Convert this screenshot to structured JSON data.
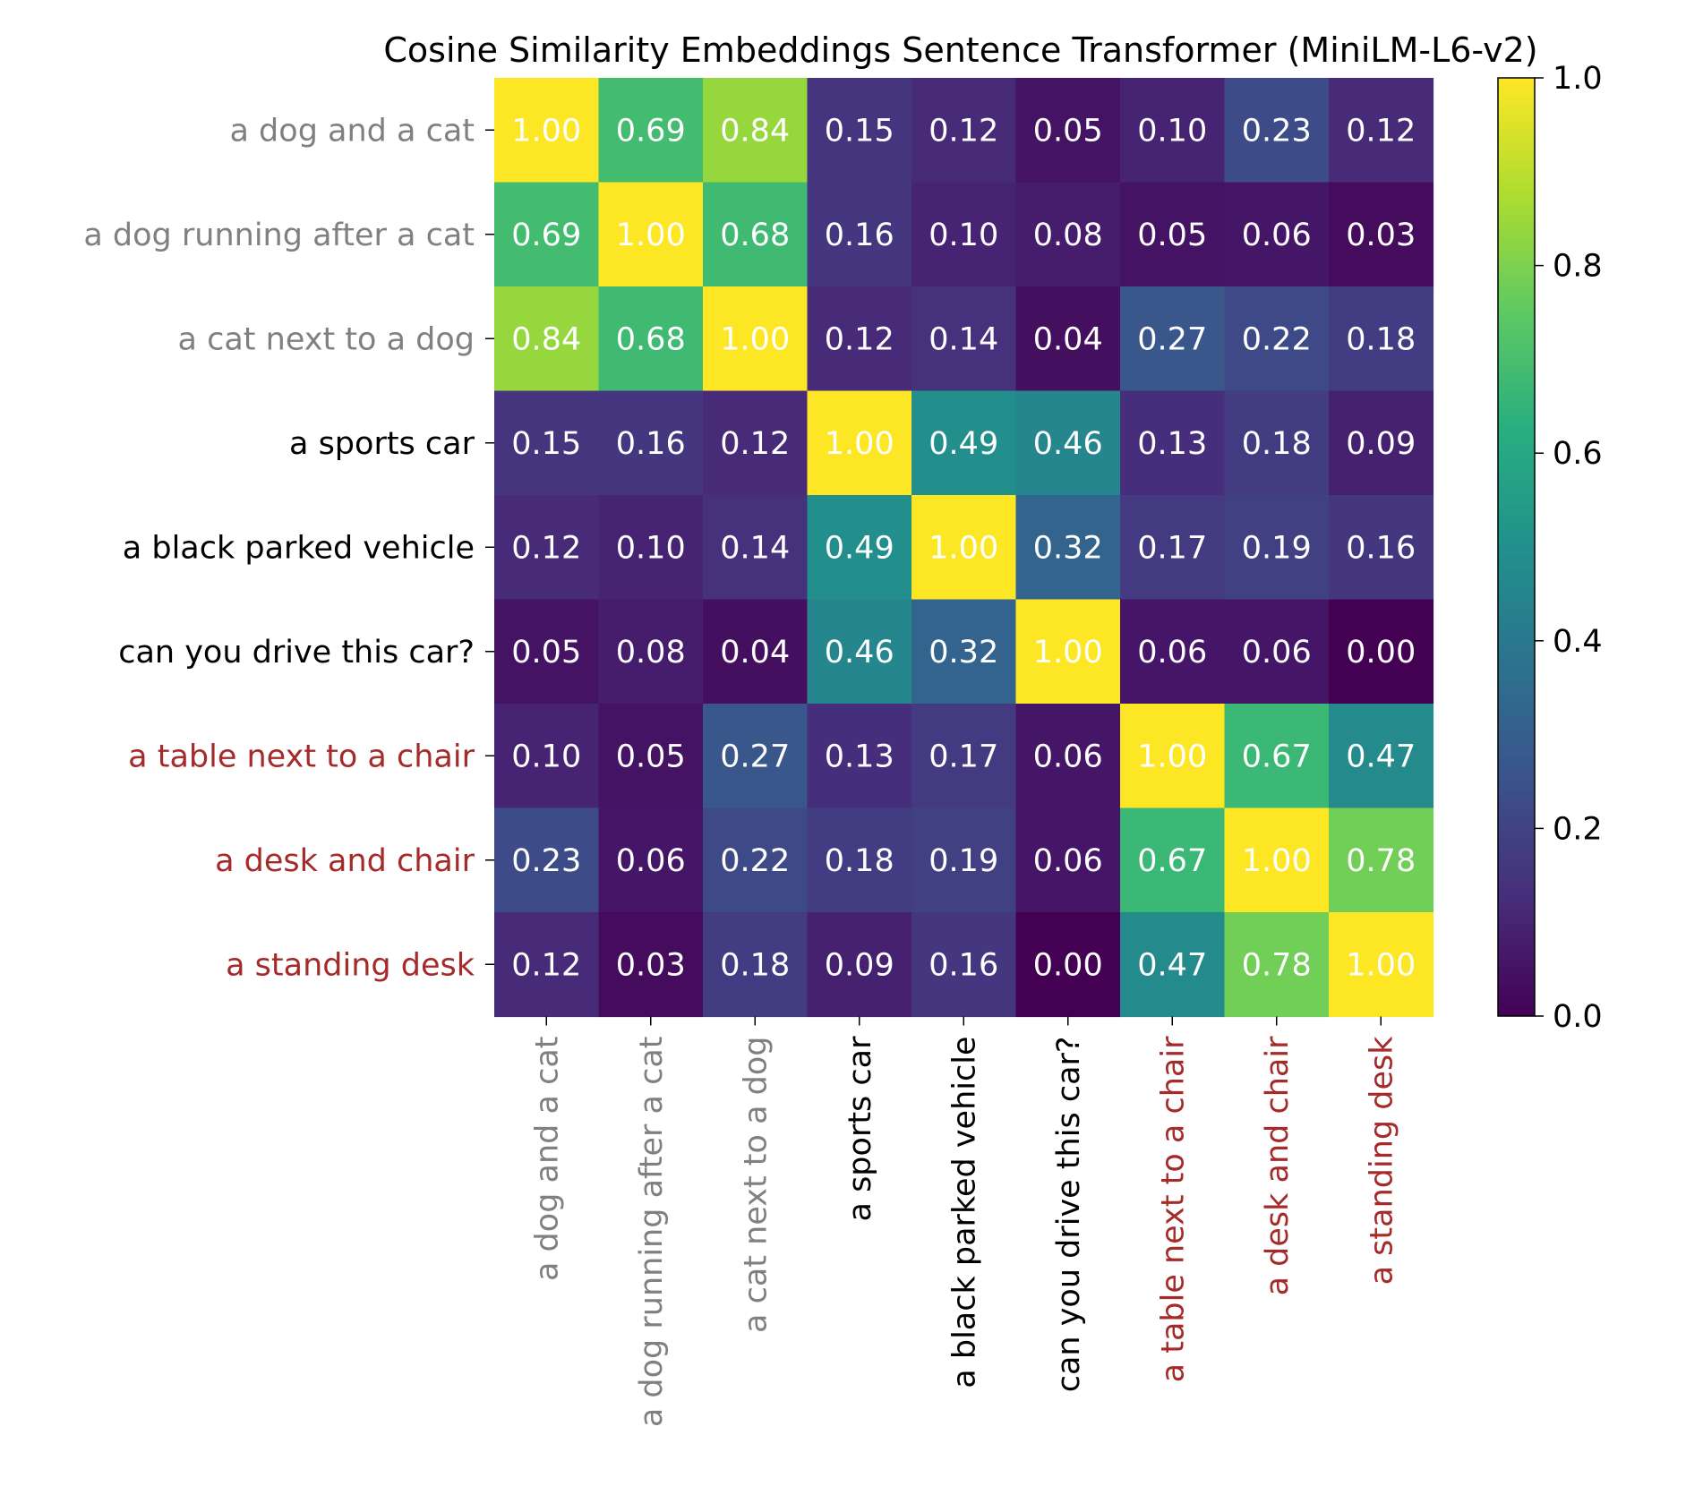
{
  "chart_data": {
    "type": "heatmap",
    "title": "Cosine Similarity Embeddings Sentence Transformer (MiniLM-L6-v2)",
    "xlabel": "",
    "ylabel": "",
    "labels": [
      "a dog and a cat",
      "a dog running after a cat",
      "a cat next to a dog",
      "a sports car",
      "a black parked vehicle",
      "can you drive this car?",
      "a table next to a chair",
      "a desk and chair",
      "a standing desk"
    ],
    "label_colors": [
      "#808080",
      "#808080",
      "#808080",
      "#000000",
      "#000000",
      "#000000",
      "#a52a2a",
      "#a52a2a",
      "#a52a2a"
    ],
    "values": [
      [
        1.0,
        0.69,
        0.84,
        0.15,
        0.12,
        0.05,
        0.1,
        0.23,
        0.12
      ],
      [
        0.69,
        1.0,
        0.68,
        0.16,
        0.1,
        0.08,
        0.05,
        0.06,
        0.03
      ],
      [
        0.84,
        0.68,
        1.0,
        0.12,
        0.14,
        0.04,
        0.27,
        0.22,
        0.18
      ],
      [
        0.15,
        0.16,
        0.12,
        1.0,
        0.49,
        0.46,
        0.13,
        0.18,
        0.09
      ],
      [
        0.12,
        0.1,
        0.14,
        0.49,
        1.0,
        0.32,
        0.17,
        0.19,
        0.16
      ],
      [
        0.05,
        0.08,
        0.04,
        0.46,
        0.32,
        1.0,
        0.06,
        0.06,
        -0.0
      ],
      [
        0.1,
        0.05,
        0.27,
        0.13,
        0.17,
        0.06,
        1.0,
        0.67,
        0.47
      ],
      [
        0.23,
        0.06,
        0.22,
        0.18,
        0.19,
        0.06,
        0.67,
        1.0,
        0.78
      ],
      [
        0.12,
        0.03,
        0.18,
        0.09,
        0.16,
        -0.0,
        0.47,
        0.78,
        1.0
      ]
    ],
    "colormap": "viridis",
    "vmin": 0.0,
    "vmax": 1.0,
    "colorbar_ticks": [
      "0.0",
      "0.2",
      "0.4",
      "0.6",
      "0.8",
      "1.0"
    ],
    "annotation_color": "#ffffff"
  }
}
